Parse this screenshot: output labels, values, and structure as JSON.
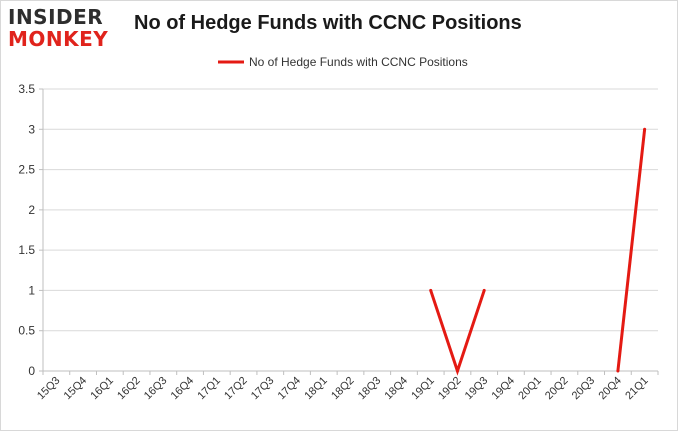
{
  "logo": {
    "top": "INSIDER",
    "bottom": "MONKEY"
  },
  "colors": {
    "series": "#e41a13",
    "grid": "#d9d9d9",
    "axis": "#bfbfbf",
    "text": "#333333",
    "logo_red": "#e0231c"
  },
  "chart_data": {
    "type": "line",
    "title": "No of Hedge Funds with CCNC Positions",
    "xlabel": "",
    "ylabel": "",
    "categories": [
      "15Q3",
      "15Q4",
      "16Q1",
      "16Q2",
      "16Q3",
      "16Q4",
      "17Q1",
      "17Q2",
      "17Q3",
      "17Q4",
      "18Q1",
      "18Q2",
      "18Q3",
      "18Q4",
      "19Q1",
      "19Q2",
      "19Q3",
      "19Q4",
      "20Q1",
      "20Q2",
      "20Q3",
      "20Q4",
      "21Q1"
    ],
    "series": [
      {
        "name": "No of Hedge Funds with CCNC Positions",
        "values": [
          null,
          null,
          null,
          null,
          null,
          null,
          null,
          null,
          null,
          null,
          null,
          null,
          null,
          null,
          1,
          0,
          1,
          null,
          null,
          null,
          null,
          0,
          3
        ]
      }
    ],
    "ylim": [
      0,
      3.5
    ],
    "yticks": [
      "0",
      "0.5",
      "1",
      "1.5",
      "2",
      "2.5",
      "3",
      "3.5"
    ],
    "grid": true,
    "legend": "top-center"
  }
}
